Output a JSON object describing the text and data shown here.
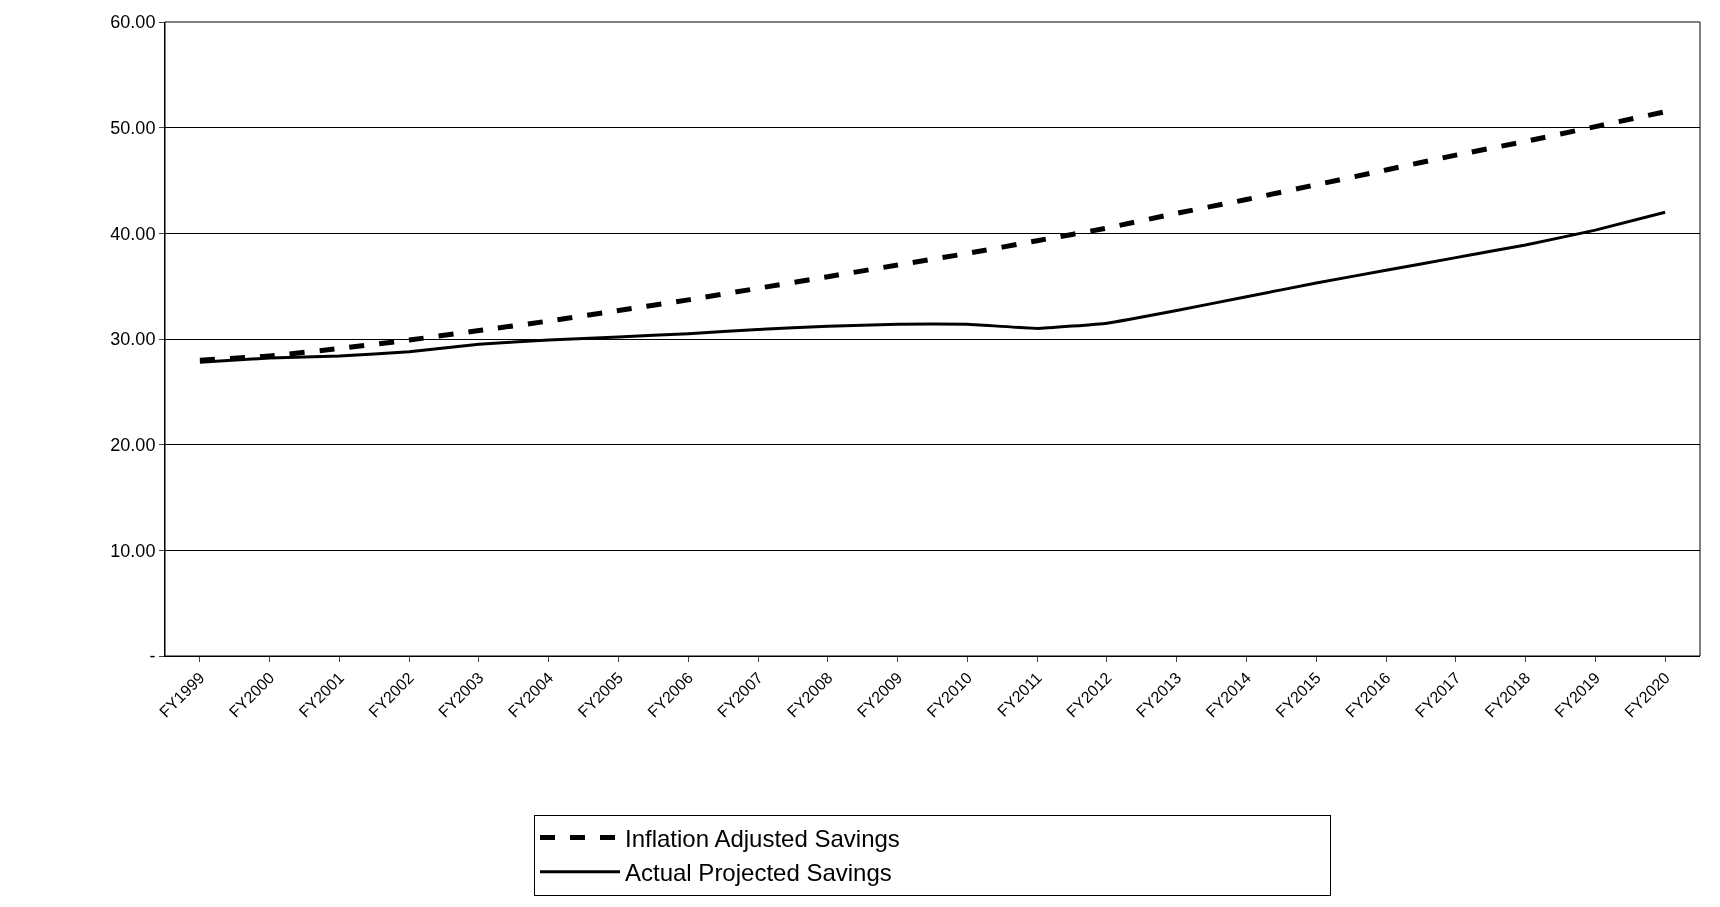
{
  "chart_data": {
    "type": "line",
    "categories": [
      "FY1999",
      "FY2000",
      "FY2001",
      "FY2002",
      "FY2003",
      "FY2004",
      "FY2005",
      "FY2006",
      "FY2007",
      "FY2008",
      "FY2009",
      "FY2010",
      "FY2011",
      "FY2012",
      "FY2013",
      "FY2014",
      "FY2015",
      "FY2016",
      "FY2017",
      "FY2018",
      "FY2019",
      "FY2020"
    ],
    "series": [
      {
        "name": "Inflation Adjusted Savings",
        "color": "#000000",
        "line_style": "dashed",
        "values": [
          28.0,
          28.4,
          29.1,
          29.9,
          30.8,
          31.7,
          32.7,
          33.7,
          34.8,
          35.9,
          37.0,
          38.1,
          39.3,
          40.5,
          41.9,
          43.2,
          44.6,
          46.0,
          47.4,
          48.7,
          50.1,
          51.5
        ]
      },
      {
        "name": "Actual Projected Savings",
        "color": "#000000",
        "line_style": "solid",
        "values": [
          27.8,
          28.2,
          28.4,
          28.8,
          29.5,
          29.9,
          30.2,
          30.5,
          30.9,
          31.2,
          31.4,
          31.4,
          31.0,
          31.5,
          32.7,
          34.0,
          35.3,
          36.5,
          37.7,
          38.9,
          40.3,
          42.0
        ]
      }
    ],
    "ylim": [
      0,
      60
    ],
    "yticks": [
      {
        "value": 0,
        "label": "-"
      },
      {
        "value": 10,
        "label": "10.00"
      },
      {
        "value": 20,
        "label": "20.00"
      },
      {
        "value": 30,
        "label": "30.00"
      },
      {
        "value": 40,
        "label": "40.00"
      },
      {
        "value": 50,
        "label": "50.00"
      },
      {
        "value": 60,
        "label": "60.00"
      }
    ],
    "grid": "y",
    "legend": "bottom",
    "marker": "none"
  }
}
